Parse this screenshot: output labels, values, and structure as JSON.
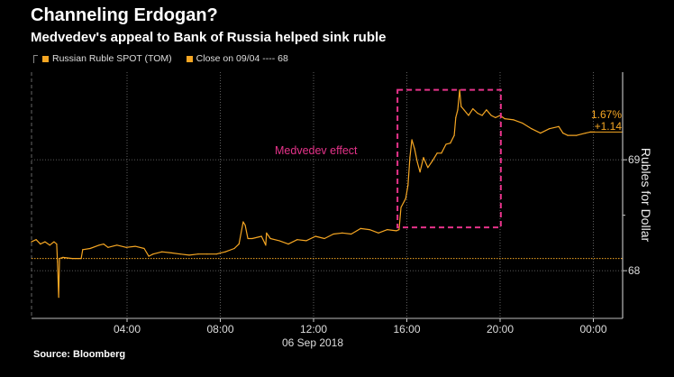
{
  "header": {
    "title": "Channeling Erdogan?",
    "subtitle": "Medvedev's appeal to Bank of Russia helped sink ruble"
  },
  "legend": {
    "series_label": "Russian Ruble SPOT (TOM)",
    "close_label": "Close on 09/04 ---- 68"
  },
  "footer": {
    "source": "Source: Bloomberg"
  },
  "chart_data": {
    "type": "line",
    "title": "Channeling Erdogan?",
    "ylabel": "Rubles for Dollar",
    "xlabel": "06 Sep 2018",
    "x_ticks": [
      "04:00",
      "08:00",
      "12:00",
      "16:00",
      "20:00",
      "00:00"
    ],
    "y_ticks": [
      68,
      69
    ],
    "ylim": [
      67.57,
      69.79
    ],
    "xlim": [
      "2018-09-05 23:54",
      "2018-09-07 01:02"
    ],
    "grid": true,
    "legend_position": "top-left",
    "colors": {
      "series": "#f5a623",
      "highlight": "#e6338a",
      "grid": "#777777"
    },
    "series": [
      {
        "name": "Russian Ruble SPOT (TOM)",
        "x": [
          "2018-09-05 23:54",
          "2018-09-06 00:06",
          "2018-09-06 00:17",
          "2018-09-06 00:29",
          "2018-09-06 00:41",
          "2018-09-06 00:52",
          "2018-09-06 00:59",
          "2018-09-06 01:01",
          "2018-09-06 01:04",
          "2018-09-06 01:06",
          "2018-09-06 01:15",
          "2018-09-06 01:39",
          "2018-09-06 02:02",
          "2018-09-06 02:06",
          "2018-09-06 02:25",
          "2018-09-06 02:48",
          "2018-09-06 03:00",
          "2018-09-06 03:11",
          "2018-09-06 03:34",
          "2018-09-06 03:58",
          "2018-09-06 04:21",
          "2018-09-06 04:44",
          "2018-09-06 04:56",
          "2018-09-06 05:07",
          "2018-09-06 05:30",
          "2018-09-06 05:54",
          "2018-09-06 06:17",
          "2018-09-06 06:40",
          "2018-09-06 07:03",
          "2018-09-06 07:26",
          "2018-09-06 07:50",
          "2018-09-06 08:01",
          "2018-09-06 08:13",
          "2018-09-06 08:36",
          "2018-09-06 08:48",
          "2018-09-06 08:59",
          "2018-09-06 09:04",
          "2018-09-06 09:11",
          "2018-09-06 09:22",
          "2018-09-06 09:46",
          "2018-09-06 09:57",
          "2018-09-06 09:59",
          "2018-09-06 10:09",
          "2018-09-06 10:32",
          "2018-09-06 10:55",
          "2018-09-06 11:18",
          "2018-09-06 11:41",
          "2018-09-06 12:05",
          "2018-09-06 12:28",
          "2018-09-06 12:51",
          "2018-09-06 13:14",
          "2018-09-06 13:37",
          "2018-09-06 14:01",
          "2018-09-06 14:24",
          "2018-09-06 14:47",
          "2018-09-06 15:10",
          "2018-09-06 15:33",
          "2018-09-06 15:40",
          "2018-09-06 15:45",
          "2018-09-06 15:57",
          "2018-09-06 16:03",
          "2018-09-06 16:08",
          "2018-09-06 16:13",
          "2018-09-06 16:20",
          "2018-09-06 16:27",
          "2018-09-06 16:34",
          "2018-09-06 16:43",
          "2018-09-06 16:54",
          "2018-09-06 17:06",
          "2018-09-06 17:18",
          "2018-09-06 17:29",
          "2018-09-06 17:41",
          "2018-09-06 17:52",
          "2018-09-06 18:02",
          "2018-09-06 18:06",
          "2018-09-06 18:11",
          "2018-09-06 18:16",
          "2018-09-06 18:20",
          "2018-09-06 18:27",
          "2018-09-06 18:39",
          "2018-09-06 18:50",
          "2018-09-06 19:02",
          "2018-09-06 19:14",
          "2018-09-06 19:25",
          "2018-09-06 19:37",
          "2018-09-06 19:48",
          "2018-09-06 20:00",
          "2018-09-06 20:12",
          "2018-09-06 20:35",
          "2018-09-06 20:58",
          "2018-09-06 21:21",
          "2018-09-06 21:44",
          "2018-09-06 22:07",
          "2018-09-06 22:31",
          "2018-09-06 22:42",
          "2018-09-06 22:54",
          "2018-09-06 23:17",
          "2018-09-06 23:40",
          "2018-09-06 23:52",
          "2018-09-07 00:03"
        ],
        "y": [
          68.26,
          68.28,
          68.24,
          68.26,
          68.23,
          68.26,
          68.24,
          68.08,
          67.76,
          68.11,
          68.12,
          68.11,
          68.11,
          68.19,
          68.2,
          68.23,
          68.24,
          68.21,
          68.23,
          68.21,
          68.22,
          68.2,
          68.13,
          68.15,
          68.17,
          68.16,
          68.15,
          68.14,
          68.15,
          68.15,
          68.15,
          68.16,
          68.17,
          68.2,
          68.24,
          68.44,
          68.41,
          68.29,
          68.29,
          68.31,
          68.23,
          68.34,
          68.29,
          68.27,
          68.24,
          68.28,
          68.27,
          68.31,
          68.29,
          68.33,
          68.34,
          68.33,
          68.38,
          68.37,
          68.34,
          68.37,
          68.36,
          68.37,
          68.57,
          68.65,
          68.77,
          69.02,
          69.18,
          69.1,
          68.98,
          68.89,
          69.02,
          68.93,
          68.99,
          69.06,
          69.06,
          69.14,
          69.15,
          69.22,
          69.38,
          69.45,
          69.63,
          69.48,
          69.45,
          69.4,
          69.46,
          69.42,
          69.4,
          69.45,
          69.4,
          69.38,
          69.4,
          69.37,
          69.36,
          69.33,
          69.28,
          69.24,
          69.28,
          69.3,
          69.24,
          69.22,
          69.22,
          69.24,
          69.25,
          69.25
        ]
      }
    ],
    "reference_lines": [
      {
        "label": "Close on 09/04",
        "value": 68.11
      }
    ],
    "last_value": {
      "pct_change": "1.67%",
      "abs_change": "+1.14"
    },
    "highlight": {
      "label": "Medvedev effect",
      "x": [
        "2018-09-06 15:36",
        "2018-09-06 20:02"
      ],
      "y": [
        68.39,
        69.63
      ]
    }
  }
}
